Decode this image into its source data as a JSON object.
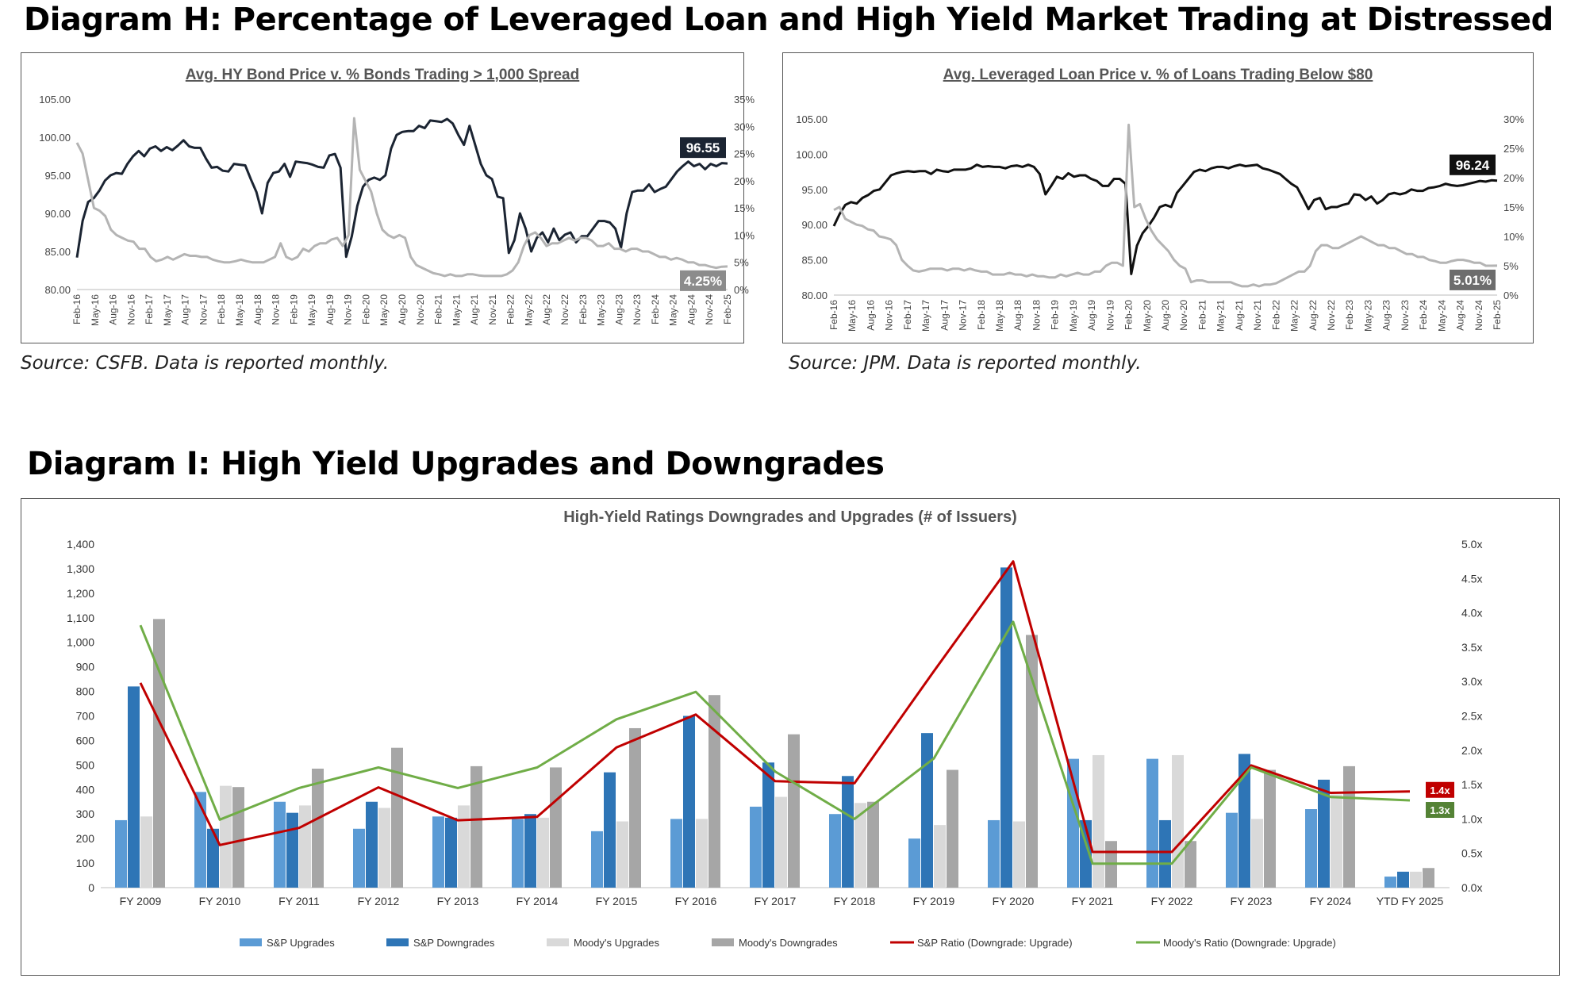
{
  "headings": {
    "diagram_h": "Diagram H: Percentage of Leveraged Loan and High Yield Market Trading at Distressed",
    "diagram_i": "Diagram I: High Yield Upgrades and Downgrades"
  },
  "sources": {
    "left": "Source: CSFB. Data is reported monthly.",
    "right": "Source: JPM. Data is reported monthly."
  },
  "colors": {
    "dark_line": "#1b2432",
    "black_line": "#111111",
    "gray_line": "#b4b4b4",
    "sp_upgrades": "#5b9bd5",
    "sp_downgrades": "#2e75b6",
    "moodys_upgrades": "#d9d9d9",
    "moodys_downgrades": "#a6a6a6",
    "sp_ratio": "#c00000",
    "moodys_ratio": "#70ad47"
  },
  "chart_data": [
    {
      "type": "line",
      "title": "Avg. HY Bond Price v. % Bonds Trading > 1,000 Spread",
      "x_ticks": [
        "Feb-16",
        "May-16",
        "Aug-16",
        "Nov-16",
        "Feb-17",
        "May-17",
        "Aug-17",
        "Nov-17",
        "Feb-18",
        "May-18",
        "Aug-18",
        "Nov-18",
        "Feb-19",
        "May-19",
        "Aug-19",
        "Nov-19",
        "Feb-20",
        "May-20",
        "Aug-20",
        "Nov-20",
        "Feb-21",
        "May-21",
        "Aug-21",
        "Nov-21",
        "Feb-22",
        "May-22",
        "Aug-22",
        "Nov-22",
        "Feb-23",
        "May-23",
        "Aug-23",
        "Nov-23",
        "Feb-24",
        "May-24",
        "Aug-24",
        "Nov-24",
        "Feb-25"
      ],
      "y_left": {
        "ticks": [
          "105.00",
          "100.00",
          "95.00",
          "90.00",
          "85.00",
          "80.00"
        ],
        "min": 80,
        "max": 105
      },
      "y_right": {
        "ticks": [
          "35%",
          "30%",
          "25%",
          "20%",
          "15%",
          "10%",
          "5%",
          "0%"
        ],
        "min": 0,
        "max": 35
      },
      "series": [
        {
          "axis": "left",
          "color": "#1b2432",
          "values": [
            84.2,
            89,
            91.5,
            92,
            93,
            94.3,
            95,
            95.3,
            95.2,
            96.5,
            97.5,
            98.2,
            97.5,
            98.5,
            98.8,
            98.2,
            98.7,
            98.3,
            98.9,
            99.6,
            98.8,
            98.6,
            98.6,
            97.2,
            96,
            96.1,
            95.6,
            95.5,
            96.5,
            96.4,
            96.3,
            94.5,
            92.8,
            90,
            94,
            95.3,
            95.5,
            96.5,
            94.8,
            96.8,
            96.7,
            96.6,
            96.4,
            96.1,
            96,
            97.6,
            97.8,
            96,
            84.3,
            87,
            91,
            93.5,
            94.4,
            94.7,
            94.4,
            95,
            98.5,
            100.3,
            100.7,
            100.8,
            100.8,
            101.5,
            101.2,
            102.2,
            102.1,
            102,
            102.4,
            101.8,
            100.3,
            99,
            101.5,
            99,
            96.5,
            95,
            94.5,
            92.2,
            92,
            84.8,
            86.5,
            90,
            88,
            85,
            86.8,
            87.5,
            86.2,
            88,
            86.5,
            87.2,
            87.5,
            86.2,
            87,
            87,
            88,
            89,
            89,
            88.8,
            88,
            85.5,
            90,
            92.8,
            93,
            93,
            93.8,
            92.8,
            93.2,
            93.5,
            94.5,
            95.5,
            96.2,
            96.8,
            96.2,
            96.5,
            95.8,
            96.5,
            96.2,
            96.6,
            96.55
          ]
        },
        {
          "axis": "right",
          "color": "#b4b4b4",
          "values": [
            27,
            25,
            20,
            15,
            14.5,
            13.5,
            11,
            10,
            9.5,
            9,
            8.8,
            7.5,
            7.5,
            6,
            5.2,
            5.5,
            6,
            5.5,
            6,
            6.5,
            6.2,
            6.2,
            6,
            6,
            5.5,
            5.2,
            5,
            5,
            5.2,
            5.5,
            5.2,
            5,
            5,
            5,
            5.5,
            6,
            8.5,
            6,
            5.5,
            6,
            7.5,
            7,
            8,
            8.5,
            8.5,
            9.2,
            9.5,
            8,
            10,
            31.5,
            22,
            20,
            18,
            14,
            11,
            10,
            9.5,
            10,
            9.5,
            6,
            4.5,
            4,
            3.5,
            3,
            2.8,
            2.5,
            2.8,
            2.5,
            2.5,
            2.8,
            2.8,
            2.6,
            2.5,
            2.5,
            2.5,
            2.5,
            2.8,
            3.5,
            5,
            8,
            10,
            10.5,
            9.5,
            8,
            8.5,
            8.5,
            9,
            9.5,
            9,
            9.5,
            9.5,
            9,
            8,
            8,
            8.5,
            7.5,
            7.5,
            7,
            7.5,
            7.5,
            7,
            7,
            6.5,
            6,
            6,
            5.5,
            5.8,
            5.5,
            5,
            5,
            4.5,
            4.5,
            4.2,
            4,
            4.2,
            4.25
          ]
        }
      ],
      "callouts": [
        {
          "axis": "left",
          "value": 96.55,
          "text": "96.55",
          "bg": "#1b2432"
        },
        {
          "axis": "right",
          "value": 4.25,
          "text": "4.25%",
          "bg": "#8c8c8c"
        }
      ]
    },
    {
      "type": "line",
      "title": "Avg. Leveraged Loan Price v. % of Loans Trading Below $80",
      "x_ticks": [
        "Feb-16",
        "May-16",
        "Aug-16",
        "Nov-16",
        "Feb-17",
        "May-17",
        "Aug-17",
        "Nov-17",
        "Feb-18",
        "May-18",
        "Aug-18",
        "Nov-18",
        "Feb-19",
        "May-19",
        "Aug-19",
        "Nov-19",
        "Feb-20",
        "May-20",
        "Aug-20",
        "Nov-20",
        "Feb-21",
        "May-21",
        "Aug-21",
        "Nov-21",
        "Feb-22",
        "May-22",
        "Aug-22",
        "Nov-22",
        "Feb-23",
        "May-23",
        "Aug-23",
        "Nov-23",
        "Feb-24",
        "May-24",
        "Aug-24",
        "Nov-24",
        "Feb-25"
      ],
      "y_left": {
        "ticks": [
          "105.00",
          "100.00",
          "95.00",
          "90.00",
          "85.00",
          "80.00"
        ],
        "min": 80,
        "max": 105
      },
      "y_right": {
        "ticks": [
          "30%",
          "25%",
          "20%",
          "15%",
          "10%",
          "5%",
          "0%"
        ],
        "min": 0,
        "max": 30
      },
      "series": [
        {
          "axis": "left",
          "color": "#111111",
          "values": [
            89.8,
            91.5,
            92.8,
            93.2,
            93,
            93.8,
            94.2,
            94.8,
            95,
            96,
            97,
            97.3,
            97.5,
            97.6,
            97.5,
            97.6,
            97.6,
            97.2,
            97.8,
            97.6,
            97.5,
            97.8,
            97.8,
            97.8,
            98,
            98.5,
            98.2,
            98.3,
            98.2,
            98.2,
            98,
            98.3,
            98.4,
            98.2,
            98.5,
            98.2,
            97.2,
            94.3,
            95.5,
            96.8,
            96.5,
            97.3,
            96.8,
            97,
            97,
            96.5,
            96.2,
            95.5,
            95.5,
            96.5,
            96.5,
            95.8,
            83,
            87,
            88.8,
            89.8,
            91,
            92.5,
            92.8,
            92.5,
            94.5,
            95.5,
            96.5,
            97.5,
            97.8,
            97.6,
            98,
            98.2,
            98.2,
            98,
            98.3,
            98.5,
            98.3,
            98.4,
            98.5,
            98,
            97.8,
            97.5,
            97.2,
            96.5,
            95.8,
            95.3,
            93.8,
            92.2,
            93.5,
            93.8,
            92.2,
            92.5,
            92.5,
            92.8,
            93,
            94.3,
            94.2,
            93.5,
            94,
            93,
            93.5,
            94.3,
            94.5,
            94.3,
            94.5,
            95,
            94.8,
            94.8,
            95.2,
            95.3,
            95.5,
            95.8,
            95.6,
            95.5,
            95.6,
            95.8,
            96,
            96.2,
            96.1,
            96.3,
            96.24
          ]
        },
        {
          "axis": "right",
          "color": "#b4b4b4",
          "values": [
            14.5,
            15,
            13,
            12.5,
            12,
            11.8,
            11.2,
            11,
            10,
            9.8,
            9.5,
            8.5,
            6,
            5,
            4.2,
            4,
            4.2,
            4.5,
            4.5,
            4.5,
            4.2,
            4.5,
            4.5,
            4.2,
            4.5,
            4.2,
            4,
            4,
            3.5,
            3.5,
            3.5,
            3.8,
            3.5,
            3.5,
            3.2,
            3.5,
            3.2,
            3.2,
            3,
            3,
            3.5,
            3.2,
            3.5,
            3.8,
            3.5,
            3.5,
            4,
            4,
            5,
            5.5,
            5.5,
            5,
            29,
            15,
            15.5,
            13,
            11,
            9.5,
            8.5,
            7.5,
            6,
            5,
            4.5,
            2.2,
            2.5,
            2.5,
            2.2,
            2.2,
            2.2,
            2.2,
            2.2,
            1.8,
            1.5,
            1.5,
            1.8,
            1.5,
            1.8,
            1.8,
            2,
            2.5,
            3,
            3.5,
            4,
            4,
            5,
            7.5,
            8.5,
            8.5,
            8,
            8,
            8.5,
            9,
            9.5,
            10,
            9.5,
            9,
            8.5,
            8.5,
            8,
            8,
            7.5,
            7,
            7,
            6.5,
            6.5,
            6,
            5.8,
            5.5,
            5.5,
            5.8,
            6,
            6,
            5.8,
            5.5,
            5.5,
            5,
            5,
            5.01
          ]
        }
      ],
      "callouts": [
        {
          "axis": "left",
          "value": 96.24,
          "text": "96.24",
          "bg": "#111111"
        },
        {
          "axis": "right",
          "value": 5.01,
          "text": "5.01%",
          "bg": "#6d6d6d"
        }
      ]
    },
    {
      "type": "bar",
      "title": "High-Yield Ratings Downgrades and Upgrades  (# of Issuers)",
      "categories": [
        "FY 2009",
        "FY 2010",
        "FY 2011",
        "FY 2012",
        "FY 2013",
        "FY 2014",
        "FY 2015",
        "FY 2016",
        "FY 2017",
        "FY 2018",
        "FY 2019",
        "FY 2020",
        "FY 2021",
        "FY 2022",
        "FY 2023",
        "FY 2024",
        "YTD FY 2025"
      ],
      "y_left": {
        "min": 0,
        "max": 1400,
        "ticks": [
          "1,400",
          "1,300",
          "1,200",
          "1,100",
          "1,000",
          "900",
          "800",
          "700",
          "600",
          "500",
          "400",
          "300",
          "200",
          "100",
          "0"
        ]
      },
      "y_right": {
        "min": 0,
        "max": 5,
        "ticks": [
          "5.0x",
          "4.5x",
          "4.0x",
          "3.5x",
          "3.0x",
          "2.5x",
          "2.0x",
          "1.5x",
          "1.0x",
          "0.5x",
          "0.0x"
        ]
      },
      "series": [
        {
          "name": "S&P Upgrades",
          "kind": "bar",
          "color": "#5b9bd5",
          "values": [
            275,
            390,
            350,
            240,
            290,
            280,
            230,
            280,
            330,
            300,
            200,
            275,
            525,
            525,
            305,
            320,
            45
          ]
        },
        {
          "name": "S&P Downgrades",
          "kind": "bar",
          "color": "#2e75b6",
          "values": [
            820,
            240,
            305,
            350,
            285,
            300,
            470,
            700,
            510,
            455,
            630,
            1305,
            275,
            275,
            545,
            440,
            65
          ]
        },
        {
          "name": "Moody's Upgrades",
          "kind": "bar",
          "color": "#d9d9d9",
          "values": [
            290,
            415,
            335,
            325,
            335,
            285,
            270,
            280,
            370,
            345,
            255,
            270,
            540,
            540,
            280,
            380,
            65
          ]
        },
        {
          "name": "Moody's Downgrades",
          "kind": "bar",
          "color": "#a6a6a6",
          "values": [
            1095,
            410,
            485,
            570,
            495,
            490,
            650,
            785,
            625,
            350,
            480,
            1030,
            190,
            190,
            480,
            495,
            80
          ]
        },
        {
          "name": "S&P Ratio (Downgrade: Upgrade)",
          "kind": "line",
          "color": "#c00000",
          "values": [
            2.98,
            0.62,
            0.87,
            1.46,
            0.98,
            1.03,
            2.04,
            2.52,
            1.55,
            1.52,
            3.15,
            4.75,
            0.52,
            0.52,
            1.78,
            1.38,
            1.4
          ]
        },
        {
          "name": "Moody's Ratio (Downgrade: Upgrade)",
          "kind": "line",
          "color": "#70ad47",
          "values": [
            3.82,
            0.99,
            1.45,
            1.75,
            1.45,
            1.75,
            2.45,
            2.85,
            1.69,
            1.0,
            1.88,
            3.87,
            0.35,
            0.35,
            1.75,
            1.32,
            1.27
          ]
        }
      ],
      "callouts": [
        {
          "text": "1.4x",
          "value": 1.4,
          "bg": "#c00000"
        },
        {
          "text": "1.3x",
          "value": 1.27,
          "bg": "#548235"
        }
      ]
    }
  ]
}
